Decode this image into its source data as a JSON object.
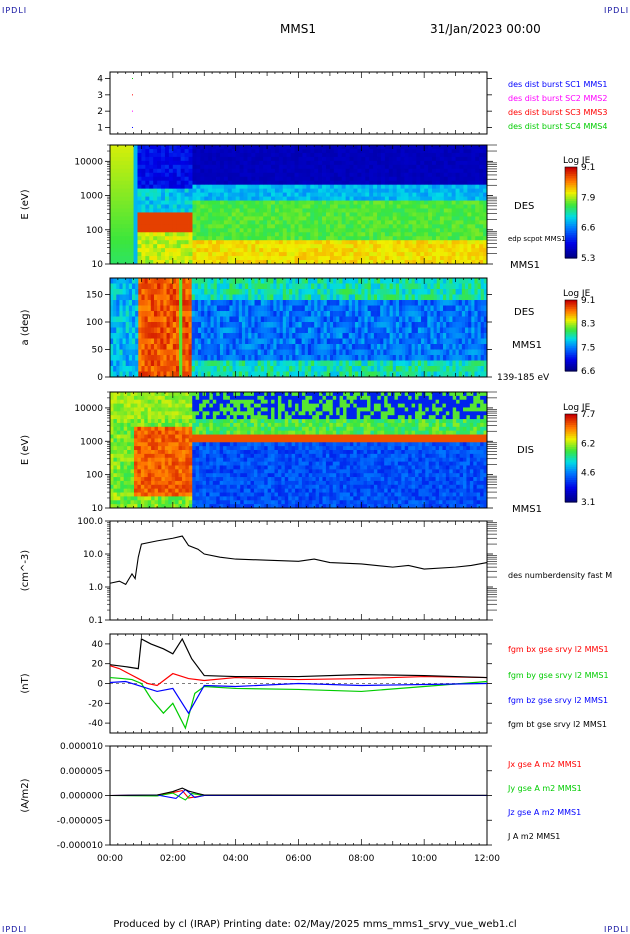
{
  "header": {
    "corner_label": "IPDLI",
    "spacecraft": "MMS1",
    "date": "31/Jan/2023 00:00"
  },
  "footer": {
    "text": "Produced by cl (IRAP)   Printing date: 02/May/2025   mms_mms1_srvy_vue_web1.cl"
  },
  "colors": {
    "mms1": "#0000ff",
    "mms2": "#ff00ff",
    "mms3": "#ff0000",
    "mms4": "#00cc00",
    "bx": "#ff0000",
    "by": "#00cc00",
    "bz": "#0000ff",
    "bt": "#000000"
  },
  "chart_data": [
    {
      "type": "scatter",
      "panel": "burst-availability",
      "yticks": [
        "1",
        "2",
        "3",
        "4"
      ],
      "ylim": [
        0.6,
        4.4
      ],
      "legend": [
        {
          "label": "des dist burst SC1 MMS1",
          "color": "#0000ff"
        },
        {
          "label": "des dist burst SC2 MMS2",
          "color": "#ff00ff"
        },
        {
          "label": "des dist burst SC3 MMS3",
          "color": "#ff0000"
        },
        {
          "label": "des dist burst SC4 MMS4",
          "color": "#00cc00"
        }
      ],
      "points": [
        {
          "x": 0.7,
          "sc": 1
        },
        {
          "x": 0.7,
          "sc": 2
        },
        {
          "x": 0.7,
          "sc": 3
        },
        {
          "x": 0.7,
          "sc": 4
        }
      ]
    },
    {
      "type": "heatmap",
      "panel": "des-energy-spectrogram",
      "ylabel": "E (eV)",
      "yscale": "log",
      "ylim": [
        10,
        30000
      ],
      "yticks": [
        "10",
        "100",
        "1000",
        "10000"
      ],
      "colorbar": {
        "title": "Log JE",
        "ticks": [
          "9.1",
          "7.9",
          "6.6",
          "5.3"
        ]
      },
      "side_labels": [
        "DES",
        "edp scpot MMS1",
        "MMS1"
      ]
    },
    {
      "type": "heatmap",
      "panel": "des-pitch-angle",
      "ylabel": "a (deg)",
      "ylim": [
        0,
        180
      ],
      "yticks": [
        "0",
        "50",
        "100",
        "150"
      ],
      "colorbar": {
        "title": "Log JE",
        "ticks": [
          "9.1",
          "8.3",
          "7.5",
          "6.6"
        ]
      },
      "side_labels": [
        "DES",
        "MMS1",
        "139-185 eV"
      ]
    },
    {
      "type": "heatmap",
      "panel": "dis-energy-spectrogram",
      "ylabel": "E (eV)",
      "yscale": "log",
      "ylim": [
        10,
        30000
      ],
      "yticks": [
        "10",
        "100",
        "1000",
        "10000"
      ],
      "colorbar": {
        "title": "Log JE",
        "ticks": [
          "7.7",
          "6.2",
          "4.6",
          "3.1"
        ]
      },
      "side_labels": [
        "DIS",
        "MMS1"
      ]
    },
    {
      "type": "line",
      "panel": "electron-density",
      "ylabel": "(cm^-3)",
      "yscale": "log",
      "ylim": [
        0.1,
        100
      ],
      "yticks": [
        "0.1",
        "1.0",
        "10.0",
        "100.0"
      ],
      "series": [
        {
          "name": "des numberdensity fast M",
          "color": "#000000",
          "x": [
            0,
            0.3,
            0.5,
            0.7,
            0.8,
            0.9,
            1.0,
            1.5,
            2.0,
            2.3,
            2.5,
            2.8,
            3.0,
            3.5,
            4.0,
            5.0,
            6.0,
            6.5,
            7.0,
            8.0,
            9.0,
            9.5,
            10.0,
            11.0,
            11.5,
            12.0
          ],
          "y": [
            1.3,
            1.5,
            1.2,
            2.5,
            1.8,
            8.0,
            20.0,
            25.0,
            30.0,
            35.0,
            18.0,
            14.0,
            10.0,
            8.0,
            7.0,
            6.5,
            6.0,
            7.0,
            5.5,
            5.0,
            4.0,
            4.5,
            3.5,
            4.0,
            4.5,
            5.5
          ]
        }
      ]
    },
    {
      "type": "line",
      "panel": "magnetic-field",
      "ylabel": "(nT)",
      "ylim": [
        -50,
        50
      ],
      "yticks": [
        "-40",
        "-20",
        "0",
        "20",
        "40"
      ],
      "series": [
        {
          "name": "fgm bx gse srvy l2 MMS1",
          "color": "#ff0000",
          "x": [
            0,
            0.3,
            0.6,
            0.9,
            1.2,
            1.5,
            2.0,
            2.5,
            3.0,
            4.0,
            6.0,
            8.0,
            10.0,
            12.0
          ],
          "y": [
            18,
            15,
            10,
            5,
            0,
            -2,
            10,
            5,
            3,
            6,
            4,
            5,
            7,
            6
          ]
        },
        {
          "name": "fgm by gse srvy l2 MMS1",
          "color": "#00cc00",
          "x": [
            0,
            0.4,
            0.7,
            1.0,
            1.3,
            1.7,
            2.0,
            2.4,
            2.7,
            3.0,
            4.0,
            6.0,
            8.0,
            10.0,
            12.0
          ],
          "y": [
            6,
            5,
            4,
            0,
            -15,
            -30,
            -20,
            -45,
            -10,
            -3,
            -5,
            -6,
            -8,
            -3,
            2
          ]
        },
        {
          "name": "fgm bz gse srvy l2 MMS1",
          "color": "#0000ff",
          "x": [
            0,
            0.5,
            1.0,
            1.5,
            2.0,
            2.5,
            3.0,
            4.0,
            6.0,
            8.0,
            10.0,
            12.0
          ],
          "y": [
            1,
            2,
            -3,
            -8,
            -5,
            -30,
            -2,
            -3,
            0,
            -2,
            -1,
            0
          ]
        },
        {
          "name": "fgm bt gse srvy l2 MMS1",
          "color": "#000000",
          "x": [
            0,
            0.5,
            0.9,
            1.0,
            1.3,
            1.7,
            2.0,
            2.3,
            2.6,
            3.0,
            4.0,
            6.0,
            8.0,
            10.0,
            12.0
          ],
          "y": [
            19,
            17,
            15,
            45,
            40,
            35,
            30,
            45,
            25,
            8,
            7,
            7,
            9,
            8,
            6
          ]
        }
      ]
    },
    {
      "type": "line",
      "panel": "current-density",
      "ylabel": "(A/m2)",
      "ylim": [
        -1e-05,
        1e-05
      ],
      "yticks": [
        "-0.000010",
        "-0.000005",
        "0.000000",
        "0.000005",
        "0.000010"
      ],
      "xticks": [
        "00:00",
        "02:00",
        "04:00",
        "06:00",
        "08:00",
        "10:00",
        "12:00"
      ],
      "xlim": [
        0,
        12
      ],
      "series": [
        {
          "name": "Jx gse A m2 MMS1",
          "color": "#ff0000",
          "x": [
            0,
            1.5,
            2.0,
            2.3,
            2.5,
            3.0,
            12.0
          ],
          "y": [
            0,
            1e-07,
            6e-07,
            1e-06,
            -5e-07,
            0,
            0
          ]
        },
        {
          "name": "Jy gse A m2 MMS1",
          "color": "#00cc00",
          "x": [
            0,
            1.5,
            2.0,
            2.4,
            2.6,
            3.0,
            12.0
          ],
          "y": [
            0,
            -1e-07,
            5e-07,
            -9e-07,
            4e-07,
            0,
            0
          ]
        },
        {
          "name": "Jz gse A m2 MMS1",
          "color": "#0000ff",
          "x": [
            0,
            1.5,
            2.1,
            2.4,
            2.7,
            3.0,
            12.0
          ],
          "y": [
            0,
            1e-07,
            -6e-07,
            1.2e-06,
            -4e-07,
            0,
            0
          ]
        },
        {
          "name": "J A m2 MMS1",
          "color": "#000000",
          "x": [
            0,
            1.5,
            2.0,
            2.3,
            2.5,
            2.8,
            3.0,
            12.0
          ],
          "y": [
            0,
            1e-07,
            8e-07,
            1.5e-06,
            9e-07,
            4e-07,
            1e-07,
            5e-08
          ]
        }
      ]
    }
  ]
}
